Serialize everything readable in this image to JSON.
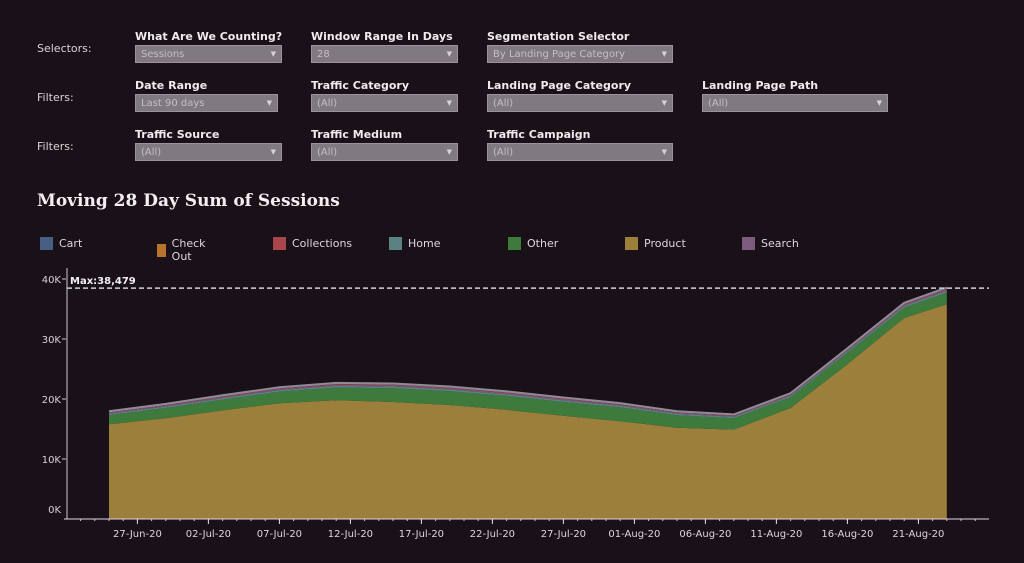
{
  "selectors_row_label": "Selectors:",
  "filters_row_label_1": "Filters:",
  "filters_row_label_2": "Filters:",
  "controls": {
    "counting": {
      "label": "What Are We Counting?",
      "value": "Sessions"
    },
    "window_range": {
      "label": "Window Range In Days",
      "value": "28"
    },
    "segmentation": {
      "label": "Segmentation Selector",
      "value": "By Landing Page Category"
    },
    "date_range": {
      "label": "Date Range",
      "value": "Last 90 days"
    },
    "traffic_category": {
      "label": "Traffic Category",
      "value": "(All)"
    },
    "landing_page_category": {
      "label": "Landing Page Category",
      "value": "(All)"
    },
    "landing_page_path": {
      "label": "Landing Page Path",
      "value": "(All)"
    },
    "traffic_source": {
      "label": "Traffic Source",
      "value": "(All)"
    },
    "traffic_medium": {
      "label": "Traffic Medium",
      "value": "(All)"
    },
    "traffic_campaign": {
      "label": "Traffic Campaign",
      "value": "(All)"
    }
  },
  "chart_data": {
    "type": "area",
    "stacked": true,
    "title": "Moving 28 Day Sum of Sessions",
    "xlabel": "",
    "ylabel": "",
    "ylim": [
      0,
      40000
    ],
    "yticks": [
      "0K",
      "10K",
      "20K",
      "30K",
      "40K"
    ],
    "ytick_values": [
      0,
      10000,
      20000,
      30000,
      40000
    ],
    "xtick_labels": [
      "27-Jun-20",
      "02-Jul-20",
      "07-Jul-20",
      "12-Jul-20",
      "17-Jul-20",
      "22-Jul-20",
      "27-Jul-20",
      "01-Aug-20",
      "06-Aug-20",
      "11-Aug-20",
      "16-Aug-20",
      "21-Aug-20"
    ],
    "xtick_day_index": [
      2,
      7,
      12,
      17,
      22,
      27,
      32,
      37,
      42,
      47,
      52,
      57
    ],
    "x_day_range": [
      0,
      59
    ],
    "x_day_start_label": "25-Jun-20",
    "x_days": [
      0,
      4,
      8,
      12,
      16,
      20,
      24,
      28,
      32,
      36,
      40,
      44,
      48,
      52,
      56,
      59
    ],
    "legend": [
      "Cart",
      "Check Out",
      "Collections",
      "Home",
      "Other",
      "Product",
      "Search"
    ],
    "legend_position": "top",
    "reference_line": {
      "label": "Max:38,479",
      "value": 38479
    },
    "series": [
      {
        "name": "Product",
        "color": "#9c7f3a",
        "values": [
          15800,
          16800,
          18100,
          19300,
          19800,
          19500,
          19000,
          18200,
          17200,
          16300,
          15200,
          14900,
          18500,
          25800,
          33500,
          35800
        ]
      },
      {
        "name": "Other",
        "color": "#3f7a3d",
        "values": [
          1500,
          1700,
          1800,
          1900,
          2100,
          2300,
          2300,
          2300,
          2300,
          2300,
          2100,
          1900,
          1800,
          1900,
          1700,
          1900
        ]
      },
      {
        "name": "Home",
        "color": "#5a8283",
        "values": [
          250,
          260,
          270,
          280,
          290,
          290,
          290,
          290,
          280,
          270,
          250,
          240,
          250,
          280,
          320,
          330
        ]
      },
      {
        "name": "Search",
        "color": "#7c5b7e",
        "values": [
          150,
          160,
          170,
          180,
          190,
          190,
          190,
          190,
          180,
          170,
          160,
          150,
          160,
          180,
          200,
          210
        ]
      },
      {
        "name": "Collections",
        "color": "#a8464c",
        "values": [
          100,
          110,
          110,
          120,
          120,
          120,
          120,
          120,
          120,
          110,
          100,
          100,
          110,
          120,
          130,
          140
        ]
      },
      {
        "name": "Cart",
        "color": "#475f82",
        "values": [
          120,
          130,
          140,
          150,
          150,
          150,
          150,
          150,
          140,
          130,
          120,
          110,
          120,
          140,
          150,
          160
        ]
      },
      {
        "name": "Check Out",
        "color": "#b8742f",
        "values": [
          30,
          30,
          30,
          30,
          30,
          30,
          30,
          30,
          30,
          30,
          30,
          30,
          30,
          30,
          30,
          30
        ]
      }
    ]
  }
}
